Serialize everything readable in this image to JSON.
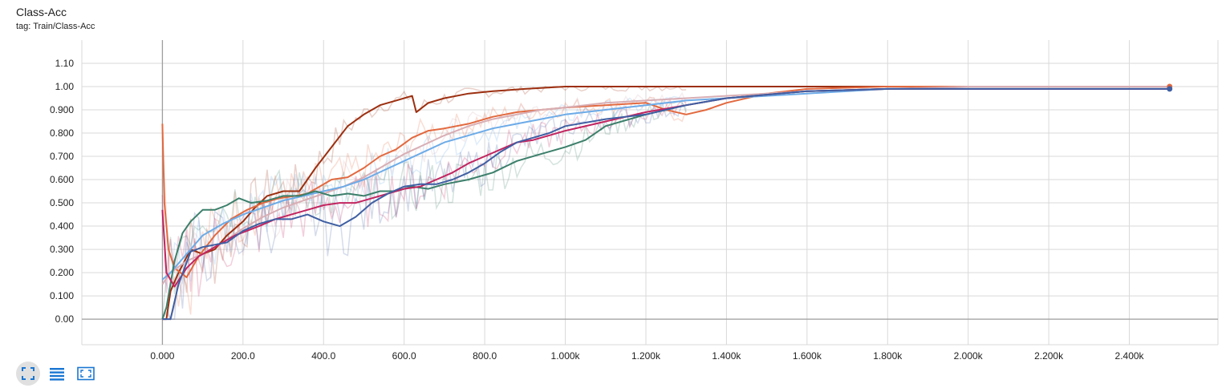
{
  "card": {
    "title": "Class-Acc",
    "tag": "tag: Train/Class-Acc"
  },
  "toolbar": {
    "buttons": [
      {
        "icon": "fit-domain-icon",
        "active": true
      },
      {
        "icon": "data-table-icon",
        "active": false
      },
      {
        "icon": "expand-chart-icon",
        "active": false
      }
    ],
    "icon_color": "#1976d2"
  },
  "chart_data": {
    "type": "line",
    "title": "Class-Acc",
    "xlabel": "",
    "ylabel": "",
    "xlim": [
      -200,
      2620
    ],
    "ylim": [
      -0.11,
      1.2
    ],
    "grid": true,
    "x_ticks": [
      0,
      200,
      400,
      600,
      800,
      1000,
      1200,
      1400,
      1600,
      1800,
      2000,
      2200,
      2400
    ],
    "x_tick_labels": [
      "0.000",
      "200.0",
      "400.0",
      "600.0",
      "800.0",
      "1.000k",
      "1.200k",
      "1.400k",
      "1.600k",
      "1.800k",
      "2.000k",
      "2.200k",
      "2.400k"
    ],
    "y_ticks": [
      0,
      0.1,
      0.2,
      0.3,
      0.4,
      0.5,
      0.6,
      0.7,
      0.8,
      0.9,
      1.0,
      1.1
    ],
    "y_tick_labels": [
      "0.00",
      "0.100",
      "0.200",
      "0.300",
      "0.400",
      "0.500",
      "0.600",
      "0.700",
      "0.800",
      "0.900",
      "1.00",
      "1.10"
    ],
    "smoothed": true,
    "series": [
      {
        "color": "#9c2f10",
        "x": [
          0,
          10,
          20,
          40,
          70,
          100,
          130,
          160,
          200,
          230,
          260,
          300,
          340,
          380,
          420,
          460,
          500,
          540,
          580,
          620,
          630,
          660,
          700,
          760,
          820,
          900,
          1000,
          1100,
          1200,
          1300,
          1400,
          1600,
          1800,
          2000,
          2200,
          2500
        ],
        "y": [
          0.0,
          0.0,
          0.12,
          0.2,
          0.3,
          0.28,
          0.3,
          0.36,
          0.42,
          0.48,
          0.53,
          0.55,
          0.55,
          0.65,
          0.74,
          0.83,
          0.88,
          0.92,
          0.94,
          0.96,
          0.89,
          0.93,
          0.95,
          0.97,
          0.98,
          0.99,
          1.0,
          1.0,
          1.0,
          1.0,
          1.0,
          1.0,
          1.0,
          1.0,
          1.0,
          1.0
        ]
      },
      {
        "color": "#e2693f",
        "x": [
          0,
          5,
          15,
          30,
          60,
          90,
          130,
          170,
          210,
          250,
          290,
          330,
          360,
          390,
          420,
          460,
          500,
          540,
          580,
          620,
          660,
          700,
          760,
          820,
          880,
          940,
          1000,
          1100,
          1200,
          1250,
          1300,
          1350,
          1400,
          1500,
          1600,
          1800,
          2000,
          2200,
          2500
        ],
        "y": [
          0.84,
          0.5,
          0.3,
          0.22,
          0.18,
          0.27,
          0.36,
          0.43,
          0.47,
          0.5,
          0.52,
          0.53,
          0.54,
          0.57,
          0.6,
          0.61,
          0.65,
          0.7,
          0.73,
          0.78,
          0.81,
          0.82,
          0.84,
          0.87,
          0.89,
          0.9,
          0.91,
          0.92,
          0.93,
          0.9,
          0.88,
          0.9,
          0.93,
          0.97,
          0.99,
          1.0,
          1.0,
          1.0,
          1.0
        ]
      },
      {
        "color": "#d8aeb4",
        "x": [
          0,
          20,
          60,
          100,
          150,
          200,
          250,
          300,
          350,
          400,
          450,
          500,
          550,
          600,
          650,
          700,
          760,
          820,
          880,
          940,
          1000,
          1100,
          1200,
          1300,
          1400,
          1600,
          1800,
          2000,
          2200,
          2500
        ],
        "y": [
          0.15,
          0.2,
          0.25,
          0.28,
          0.33,
          0.39,
          0.44,
          0.48,
          0.51,
          0.54,
          0.57,
          0.61,
          0.66,
          0.71,
          0.75,
          0.79,
          0.83,
          0.86,
          0.88,
          0.9,
          0.91,
          0.93,
          0.94,
          0.95,
          0.96,
          0.98,
          0.99,
          1.0,
          1.0,
          1.0
        ]
      },
      {
        "color": "#6cabe8",
        "x": [
          0,
          20,
          60,
          100,
          150,
          200,
          250,
          300,
          350,
          400,
          450,
          500,
          550,
          600,
          650,
          700,
          760,
          820,
          880,
          940,
          1000,
          1100,
          1200,
          1300,
          1400,
          1600,
          1800,
          2000,
          2200,
          2500
        ],
        "y": [
          0.17,
          0.2,
          0.28,
          0.36,
          0.41,
          0.45,
          0.48,
          0.51,
          0.53,
          0.55,
          0.57,
          0.6,
          0.64,
          0.68,
          0.72,
          0.76,
          0.79,
          0.82,
          0.84,
          0.86,
          0.88,
          0.9,
          0.92,
          0.94,
          0.95,
          0.97,
          0.99,
          0.99,
          0.99,
          0.99
        ]
      },
      {
        "color": "#3b7f6a",
        "x": [
          0,
          10,
          30,
          50,
          70,
          100,
          130,
          160,
          190,
          220,
          260,
          300,
          340,
          380,
          420,
          460,
          500,
          540,
          580,
          620,
          660,
          700,
          760,
          820,
          880,
          940,
          1000,
          1050,
          1100,
          1200,
          1300,
          1400,
          1600,
          1800,
          2000,
          2200,
          2500
        ],
        "y": [
          0.0,
          0.05,
          0.25,
          0.37,
          0.42,
          0.47,
          0.47,
          0.49,
          0.52,
          0.5,
          0.51,
          0.53,
          0.53,
          0.55,
          0.53,
          0.54,
          0.53,
          0.55,
          0.55,
          0.57,
          0.56,
          0.58,
          0.6,
          0.63,
          0.68,
          0.71,
          0.74,
          0.77,
          0.83,
          0.88,
          0.92,
          0.95,
          0.98,
          0.99,
          0.99,
          0.99,
          0.99
        ]
      },
      {
        "color": "#c2245f",
        "x": [
          0,
          10,
          30,
          60,
          90,
          120,
          150,
          180,
          210,
          240,
          280,
          320,
          360,
          400,
          440,
          480,
          520,
          560,
          600,
          640,
          680,
          720,
          760,
          800,
          840,
          880,
          920,
          960,
          1000,
          1100,
          1200,
          1300,
          1400,
          1600,
          1800,
          2000,
          2200,
          2500
        ],
        "y": [
          0.47,
          0.2,
          0.14,
          0.22,
          0.27,
          0.3,
          0.33,
          0.36,
          0.38,
          0.4,
          0.43,
          0.45,
          0.47,
          0.49,
          0.5,
          0.5,
          0.52,
          0.54,
          0.56,
          0.57,
          0.6,
          0.63,
          0.67,
          0.7,
          0.73,
          0.76,
          0.77,
          0.79,
          0.81,
          0.85,
          0.89,
          0.92,
          0.95,
          0.98,
          0.99,
          0.99,
          0.99,
          0.99
        ]
      },
      {
        "color": "#3f5fa3",
        "x": [
          0,
          10,
          20,
          40,
          70,
          100,
          130,
          160,
          200,
          240,
          280,
          320,
          360,
          400,
          440,
          480,
          520,
          560,
          600,
          640,
          680,
          720,
          760,
          800,
          840,
          880,
          920,
          960,
          1000,
          1100,
          1200,
          1300,
          1400,
          1600,
          1800,
          2000,
          2200,
          2500
        ],
        "y": [
          0.0,
          0.0,
          0.0,
          0.15,
          0.29,
          0.31,
          0.32,
          0.33,
          0.38,
          0.41,
          0.43,
          0.43,
          0.45,
          0.42,
          0.4,
          0.44,
          0.5,
          0.54,
          0.57,
          0.58,
          0.58,
          0.6,
          0.63,
          0.67,
          0.72,
          0.76,
          0.78,
          0.8,
          0.83,
          0.86,
          0.88,
          0.92,
          0.95,
          0.98,
          0.99,
          0.99,
          0.99,
          0.99
        ]
      }
    ],
    "end_points": [
      {
        "x": 2500,
        "y": 1.0,
        "color": "#e2693f"
      },
      {
        "x": 2500,
        "y": 0.99,
        "color": "#3f5fa3"
      }
    ]
  }
}
